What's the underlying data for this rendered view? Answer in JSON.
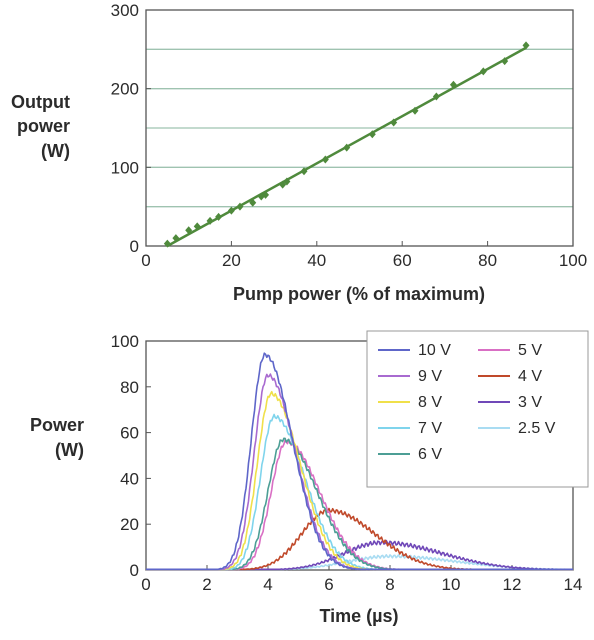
{
  "chart_data": [
    {
      "type": "scatter",
      "xlabel": "Pump power (% of maximum)",
      "ylabel_lines": [
        "Output",
        "power",
        "(W)"
      ],
      "xlim": [
        0,
        100
      ],
      "ylim": [
        0,
        300
      ],
      "xticks": [
        "0",
        "20",
        "40",
        "60",
        "80",
        "100"
      ],
      "yticks": [
        "0",
        "100",
        "200",
        "300"
      ],
      "gridlines_y": [
        50,
        100,
        150,
        200,
        250
      ],
      "points": {
        "x": [
          5,
          7,
          10,
          12,
          15,
          17,
          20,
          22,
          25,
          27,
          28,
          32,
          33,
          37,
          42,
          47,
          53,
          58,
          63,
          68,
          72,
          79,
          84,
          89
        ],
        "y": [
          3,
          10,
          20,
          25,
          32,
          37,
          45,
          50,
          55,
          63,
          65,
          78,
          82,
          95,
          110,
          125,
          142,
          157,
          172,
          190,
          205,
          222,
          235,
          255
        ]
      },
      "fit_line": {
        "x": [
          5,
          89
        ],
        "y": [
          0,
          252
        ]
      },
      "color": "#4f8a3c",
      "grid_color": "#9fc3b0"
    },
    {
      "type": "line",
      "xlabel": "Time (µs)",
      "ylabel_lines": [
        "Power",
        "(W)"
      ],
      "xlim": [
        0,
        14
      ],
      "ylim": [
        0,
        100
      ],
      "xticks": [
        "0",
        "2",
        "4",
        "6",
        "8",
        "10",
        "12",
        "14"
      ],
      "yticks": [
        "0",
        "20",
        "40",
        "60",
        "80",
        "100"
      ],
      "legend_position": "top-right",
      "series": [
        {
          "name": "10 V",
          "color": "#5e66c9",
          "peak_time": 3.9,
          "peak": 94,
          "rise": 0.45,
          "fall": 0.9
        },
        {
          "name": "9 V",
          "color": "#a86ad0",
          "peak_time": 4.0,
          "peak": 85,
          "rise": 0.45,
          "fall": 0.9
        },
        {
          "name": "8 V",
          "color": "#f0e04a",
          "peak_time": 4.1,
          "peak": 77,
          "rise": 0.45,
          "fall": 0.95
        },
        {
          "name": "7 V",
          "color": "#7fd4ec",
          "peak_time": 4.2,
          "peak": 67,
          "rise": 0.45,
          "fall": 1.0
        },
        {
          "name": "6 V",
          "color": "#4c9e95",
          "peak_time": 4.5,
          "peak": 57,
          "rise": 0.5,
          "fall": 1.1
        },
        {
          "name": "5 V",
          "color": "#d96fc4",
          "peak_time": 4.6,
          "peak": 56,
          "rise": 0.5,
          "fall": 1.1
        },
        {
          "name": "4 V",
          "color": "#c0492a",
          "peak_time": 6.0,
          "peak": 26,
          "rise": 0.9,
          "fall": 1.5
        },
        {
          "name": "3 V",
          "color": "#7048b8",
          "peak_time": 7.7,
          "peak": 12,
          "rise": 1.2,
          "fall": 2.0
        },
        {
          "name": "2.5 V",
          "color": "#a9dcf2",
          "peak_time": 8.0,
          "peak": 6,
          "rise": 1.4,
          "fall": 2.2
        }
      ]
    }
  ]
}
